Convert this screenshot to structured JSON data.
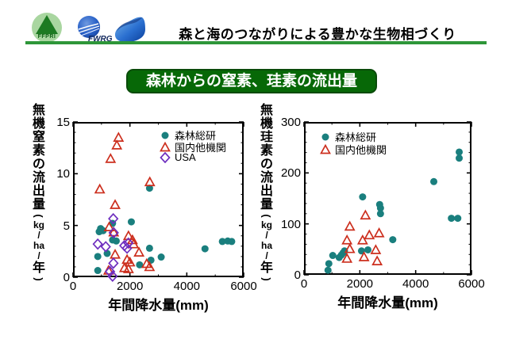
{
  "header": {
    "title": "森と海のつながりによる豊かな生物相づくり",
    "ffpri_logo_text": "FFPRI",
    "fwrg_logo_text": "FWRG"
  },
  "subtitle": "森林からの窒素、珪素の流出量",
  "colors": {
    "rule_green": "#2e9639",
    "subtitle_bg": "#076807",
    "series_teal": "#1a7f7e",
    "series_red": "#cc2e1d",
    "series_purple": "#6e2fbf"
  },
  "chart_data": [
    {
      "id": "nitrogen",
      "type": "scatter",
      "ylabel": "無機窒素の流出量(kg/ha/年)",
      "xlabel": "年間降水量(mm)",
      "xlim": [
        0,
        6000
      ],
      "ylim": [
        0,
        15
      ],
      "x_ticks": [
        0,
        2000,
        4000,
        6000
      ],
      "y_ticks": [
        0,
        5,
        10,
        15
      ],
      "x_minor_step": 1000,
      "y_minor_step": 1,
      "grid": false,
      "legend_position": "top-right",
      "series": [
        {
          "name": "森林総研",
          "marker": "circle",
          "color": "#1a7f7e",
          "points": [
            [
              920,
              4.4
            ],
            [
              970,
              4.7
            ],
            [
              1060,
              4.5
            ],
            [
              1390,
              5.2
            ],
            [
              1390,
              3.6
            ],
            [
              1520,
              3.5
            ],
            [
              1200,
              2.3
            ],
            [
              870,
              2.0
            ],
            [
              870,
              0.65
            ],
            [
              2050,
              5.35
            ],
            [
              2690,
              8.6
            ],
            [
              2690,
              2.8
            ],
            [
              2740,
              1.65
            ],
            [
              3100,
              1.95
            ],
            [
              2340,
              1.2
            ],
            [
              4640,
              2.75
            ],
            [
              5250,
              3.45
            ],
            [
              5440,
              3.5
            ],
            [
              5580,
              3.45
            ]
          ]
        },
        {
          "name": "国内他機関",
          "marker": "triangle-open",
          "color": "#cc2e1d",
          "points": [
            [
              1600,
              13.5
            ],
            [
              1540,
              12.75
            ],
            [
              1320,
              11.45
            ],
            [
              940,
              8.5
            ],
            [
              2700,
              9.2
            ],
            [
              1480,
              7.0
            ],
            [
              1270,
              4.85
            ],
            [
              1430,
              4.35
            ],
            [
              1950,
              4.0
            ],
            [
              2090,
              3.6
            ],
            [
              2130,
              3.2
            ],
            [
              1480,
              2.2
            ],
            [
              2320,
              2.4
            ],
            [
              1900,
              1.7
            ],
            [
              2000,
              1.45
            ],
            [
              1250,
              0.65
            ],
            [
              1810,
              0.9
            ],
            [
              1950,
              0.8
            ],
            [
              2590,
              1.3
            ],
            [
              2690,
              1.0
            ]
          ]
        },
        {
          "name": "USA",
          "marker": "diamond-open",
          "color": "#6e2fbf",
          "points": [
            [
              1415,
              5.65
            ],
            [
              1430,
              4.3
            ],
            [
              870,
              3.2
            ],
            [
              1150,
              2.95
            ],
            [
              1805,
              3.05
            ],
            [
              1900,
              2.8
            ],
            [
              1945,
              3.3
            ],
            [
              1420,
              1.35
            ],
            [
              1300,
              0.55
            ],
            [
              1390,
              0.1
            ]
          ]
        }
      ]
    },
    {
      "id": "silicon",
      "type": "scatter",
      "ylabel": "無機珪素の流出量(kg/ha/年)",
      "xlabel": "年間降水量(mm)",
      "xlim": [
        0,
        6000
      ],
      "ylim": [
        0,
        300
      ],
      "x_ticks": [
        0,
        2000,
        4000,
        6000
      ],
      "y_ticks": [
        0,
        100,
        200,
        300
      ],
      "x_minor_step": 1000,
      "y_minor_step": 20,
      "grid": false,
      "legend_position": "top-left",
      "series": [
        {
          "name": "森林総研",
          "marker": "circle",
          "color": "#1a7f7e",
          "points": [
            [
              860,
              9
            ],
            [
              890,
              22
            ],
            [
              1030,
              38
            ],
            [
              1260,
              34
            ],
            [
              1340,
              39
            ],
            [
              1400,
              43
            ],
            [
              1450,
              47
            ],
            [
              2060,
              47
            ],
            [
              2290,
              49
            ],
            [
              2100,
              153
            ],
            [
              2710,
              138
            ],
            [
              2740,
              131
            ],
            [
              2740,
              120
            ],
            [
              3180,
              69
            ],
            [
              4650,
              183
            ],
            [
              5280,
              111
            ],
            [
              5510,
              111
            ],
            [
              5560,
              241
            ],
            [
              5560,
              229
            ]
          ]
        },
        {
          "name": "国内他機関",
          "marker": "triangle-open",
          "color": "#cc2e1d",
          "points": [
            [
              1640,
              95
            ],
            [
              1540,
              68
            ],
            [
              1640,
              51
            ],
            [
              1540,
              32
            ],
            [
              2100,
              68
            ],
            [
              2200,
              117
            ],
            [
              2340,
              78
            ],
            [
              2150,
              35
            ],
            [
              2690,
              82
            ],
            [
              2570,
              49
            ],
            [
              2620,
              27
            ]
          ]
        }
      ]
    }
  ]
}
